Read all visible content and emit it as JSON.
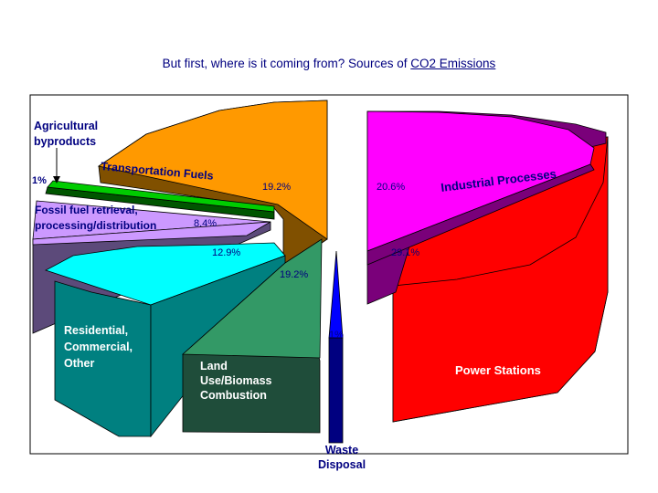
{
  "title": {
    "prefix": "But first, where is it coming from? Sources of ",
    "underlined": "CO2 Emissions"
  },
  "chart_data": {
    "type": "pie",
    "style": "3d-exploded",
    "slices": [
      {
        "label": "Industrial Processes",
        "value": 20.6,
        "value_label": "20.6%",
        "color": "#ff00ff",
        "side_color": "#7a007a"
      },
      {
        "label": "Power Stations",
        "value": 29.1,
        "value_label": "29.1%",
        "color": "#ff0000",
        "side_color": "#800000"
      },
      {
        "label": "Waste Disposal",
        "value": 1,
        "value_label": "1%",
        "color": "#0000ff",
        "side_color": "#000080"
      },
      {
        "label": "Land Use/Biomass Combustion",
        "value": 19.2,
        "value_label": "19.2%",
        "color": "#339966",
        "side_color": "#1f4d3a"
      },
      {
        "label": "Residential, Commercial, Other",
        "value": 12.9,
        "value_label": "12.9%",
        "color": "#00ffff",
        "side_color": "#008080"
      },
      {
        "label": "Fossil fuel retrieval, processing/distribution",
        "value": 8.4,
        "value_label": "8.4%",
        "color": "#cc99ff",
        "side_color": "#5c4a7a"
      },
      {
        "label": "Agricultural byproducts",
        "value": 1,
        "value_label": "1%",
        "color": "#00cc00",
        "side_color": "#005500"
      },
      {
        "label": "Transportation Fuels",
        "value": 19.2,
        "value_label": "19.2%",
        "color": "#ff9900",
        "side_color": "#805000"
      }
    ],
    "label_texts": {
      "agricultural": [
        "Agricultural",
        "byproducts"
      ],
      "agricultural_pct": "1%",
      "transport": "Transportation Fuels",
      "transport_pct": "19.2%",
      "fossil": [
        "Fossil fuel retrieval,",
        "processing/distribution"
      ],
      "fossil_pct": "8.4%",
      "residential_pct": "12.9%",
      "residential": [
        "Residential,",
        "Commercial,",
        "Other"
      ],
      "landuse_pct": "19.2%",
      "landuse": [
        "Land",
        "Use/Biomass",
        "Combustion"
      ],
      "waste_pct": "1%",
      "waste": [
        "Waste",
        "Disposal"
      ],
      "industrial": "Industrial Processes",
      "industrial_pct": "20.6%",
      "power_pct": "29.1%",
      "power": "Power Stations"
    }
  }
}
